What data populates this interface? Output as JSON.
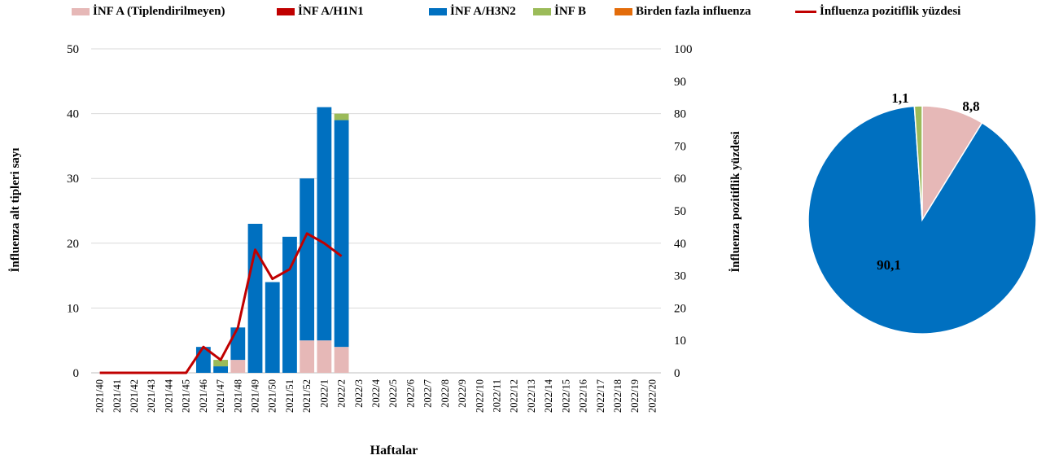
{
  "legend": [
    {
      "label": "İNF A (Tiplendirilmeyen)",
      "color": "#E6B8B7",
      "kind": "box"
    },
    {
      "label": "İNF A/H1N1",
      "color": "#C00000",
      "kind": "box"
    },
    {
      "label": "İNF A/H3N2",
      "color": "#0070C0",
      "kind": "box"
    },
    {
      "label": "İNF B",
      "color": "#9BBB59",
      "kind": "box"
    },
    {
      "label": "Birden fazla influenza",
      "color": "#E36C0A",
      "kind": "box"
    },
    {
      "label": "İnfluenza pozitiflik yüzdesi",
      "color": "#C00000",
      "kind": "line"
    }
  ],
  "chart_data": [
    {
      "type": "bar",
      "stacked": true,
      "xlabel": "Haftalar",
      "ylabel": "İnfluenza alt tipleri sayı",
      "y2label": "İnfluenza pozitiflik yüzdesi",
      "ylim": [
        0,
        50
      ],
      "y2lim": [
        0,
        100
      ],
      "yticks": [
        0,
        10,
        20,
        30,
        40,
        50
      ],
      "y2ticks": [
        0,
        10,
        20,
        30,
        40,
        50,
        60,
        70,
        80,
        90,
        100
      ],
      "grid": true,
      "legend_position": "top",
      "categories": [
        "2021/40",
        "2021/41",
        "2021/42",
        "2021/43",
        "2021/44",
        "2021/45",
        "2021/46",
        "2021/47",
        "2021/48",
        "2021/49",
        "2021/50",
        "2021/51",
        "2021/52",
        "2022/1",
        "2022/2",
        "2022/3",
        "2022/4",
        "2022/5",
        "2022/6",
        "2022/7",
        "2022/8",
        "2022/9",
        "2022/10",
        "2022/11",
        "2022/12",
        "2022/13",
        "2022/14",
        "2022/15",
        "2022/16",
        "2022/17",
        "2022/18",
        "2022/19",
        "2022/20"
      ],
      "series": [
        {
          "name": "İNF A (Tiplendirilmeyen)",
          "color": "#E6B8B7",
          "values": [
            0,
            0,
            0,
            0,
            0,
            0,
            0,
            0,
            2,
            0,
            0,
            0,
            5,
            5,
            4,
            0,
            0,
            0,
            0,
            0,
            0,
            0,
            0,
            0,
            0,
            0,
            0,
            0,
            0,
            0,
            0,
            0,
            0
          ]
        },
        {
          "name": "İNF A/H1N1",
          "color": "#C00000",
          "values": [
            0,
            0,
            0,
            0,
            0,
            0,
            0,
            0,
            0,
            0,
            0,
            0,
            0,
            0,
            0,
            0,
            0,
            0,
            0,
            0,
            0,
            0,
            0,
            0,
            0,
            0,
            0,
            0,
            0,
            0,
            0,
            0,
            0
          ]
        },
        {
          "name": "İNF A/H3N2",
          "color": "#0070C0",
          "values": [
            0,
            0,
            0,
            0,
            0,
            0,
            4,
            1,
            5,
            23,
            14,
            21,
            25,
            36,
            35,
            0,
            0,
            0,
            0,
            0,
            0,
            0,
            0,
            0,
            0,
            0,
            0,
            0,
            0,
            0,
            0,
            0,
            0
          ]
        },
        {
          "name": "İNF B",
          "color": "#9BBB59",
          "values": [
            0,
            0,
            0,
            0,
            0,
            0,
            0,
            1,
            0,
            0,
            0,
            0,
            0,
            0,
            1,
            0,
            0,
            0,
            0,
            0,
            0,
            0,
            0,
            0,
            0,
            0,
            0,
            0,
            0,
            0,
            0,
            0,
            0
          ]
        },
        {
          "name": "Birden fazla influenza",
          "color": "#E36C0A",
          "values": [
            0,
            0,
            0,
            0,
            0,
            0,
            0,
            0,
            0,
            0,
            0,
            0,
            0,
            0,
            0,
            0,
            0,
            0,
            0,
            0,
            0,
            0,
            0,
            0,
            0,
            0,
            0,
            0,
            0,
            0,
            0,
            0,
            0
          ]
        }
      ],
      "line_series": {
        "name": "İnfluenza pozitiflik yüzdesi",
        "color": "#C00000",
        "axis": "right",
        "values": [
          0,
          0,
          0,
          0,
          0,
          0,
          8,
          4,
          14,
          38,
          29,
          32,
          43,
          40,
          36,
          null,
          null,
          null,
          null,
          null,
          null,
          null,
          null,
          null,
          null,
          null,
          null,
          null,
          null,
          null,
          null,
          null,
          null
        ]
      }
    },
    {
      "type": "pie",
      "slices": [
        {
          "label": "8,8",
          "value": 8.8,
          "color": "#E6B8B7"
        },
        {
          "label": "90,1",
          "value": 90.1,
          "color": "#0070C0"
        },
        {
          "label": "1,1",
          "value": 1.1,
          "color": "#9BBB59"
        }
      ]
    }
  ]
}
